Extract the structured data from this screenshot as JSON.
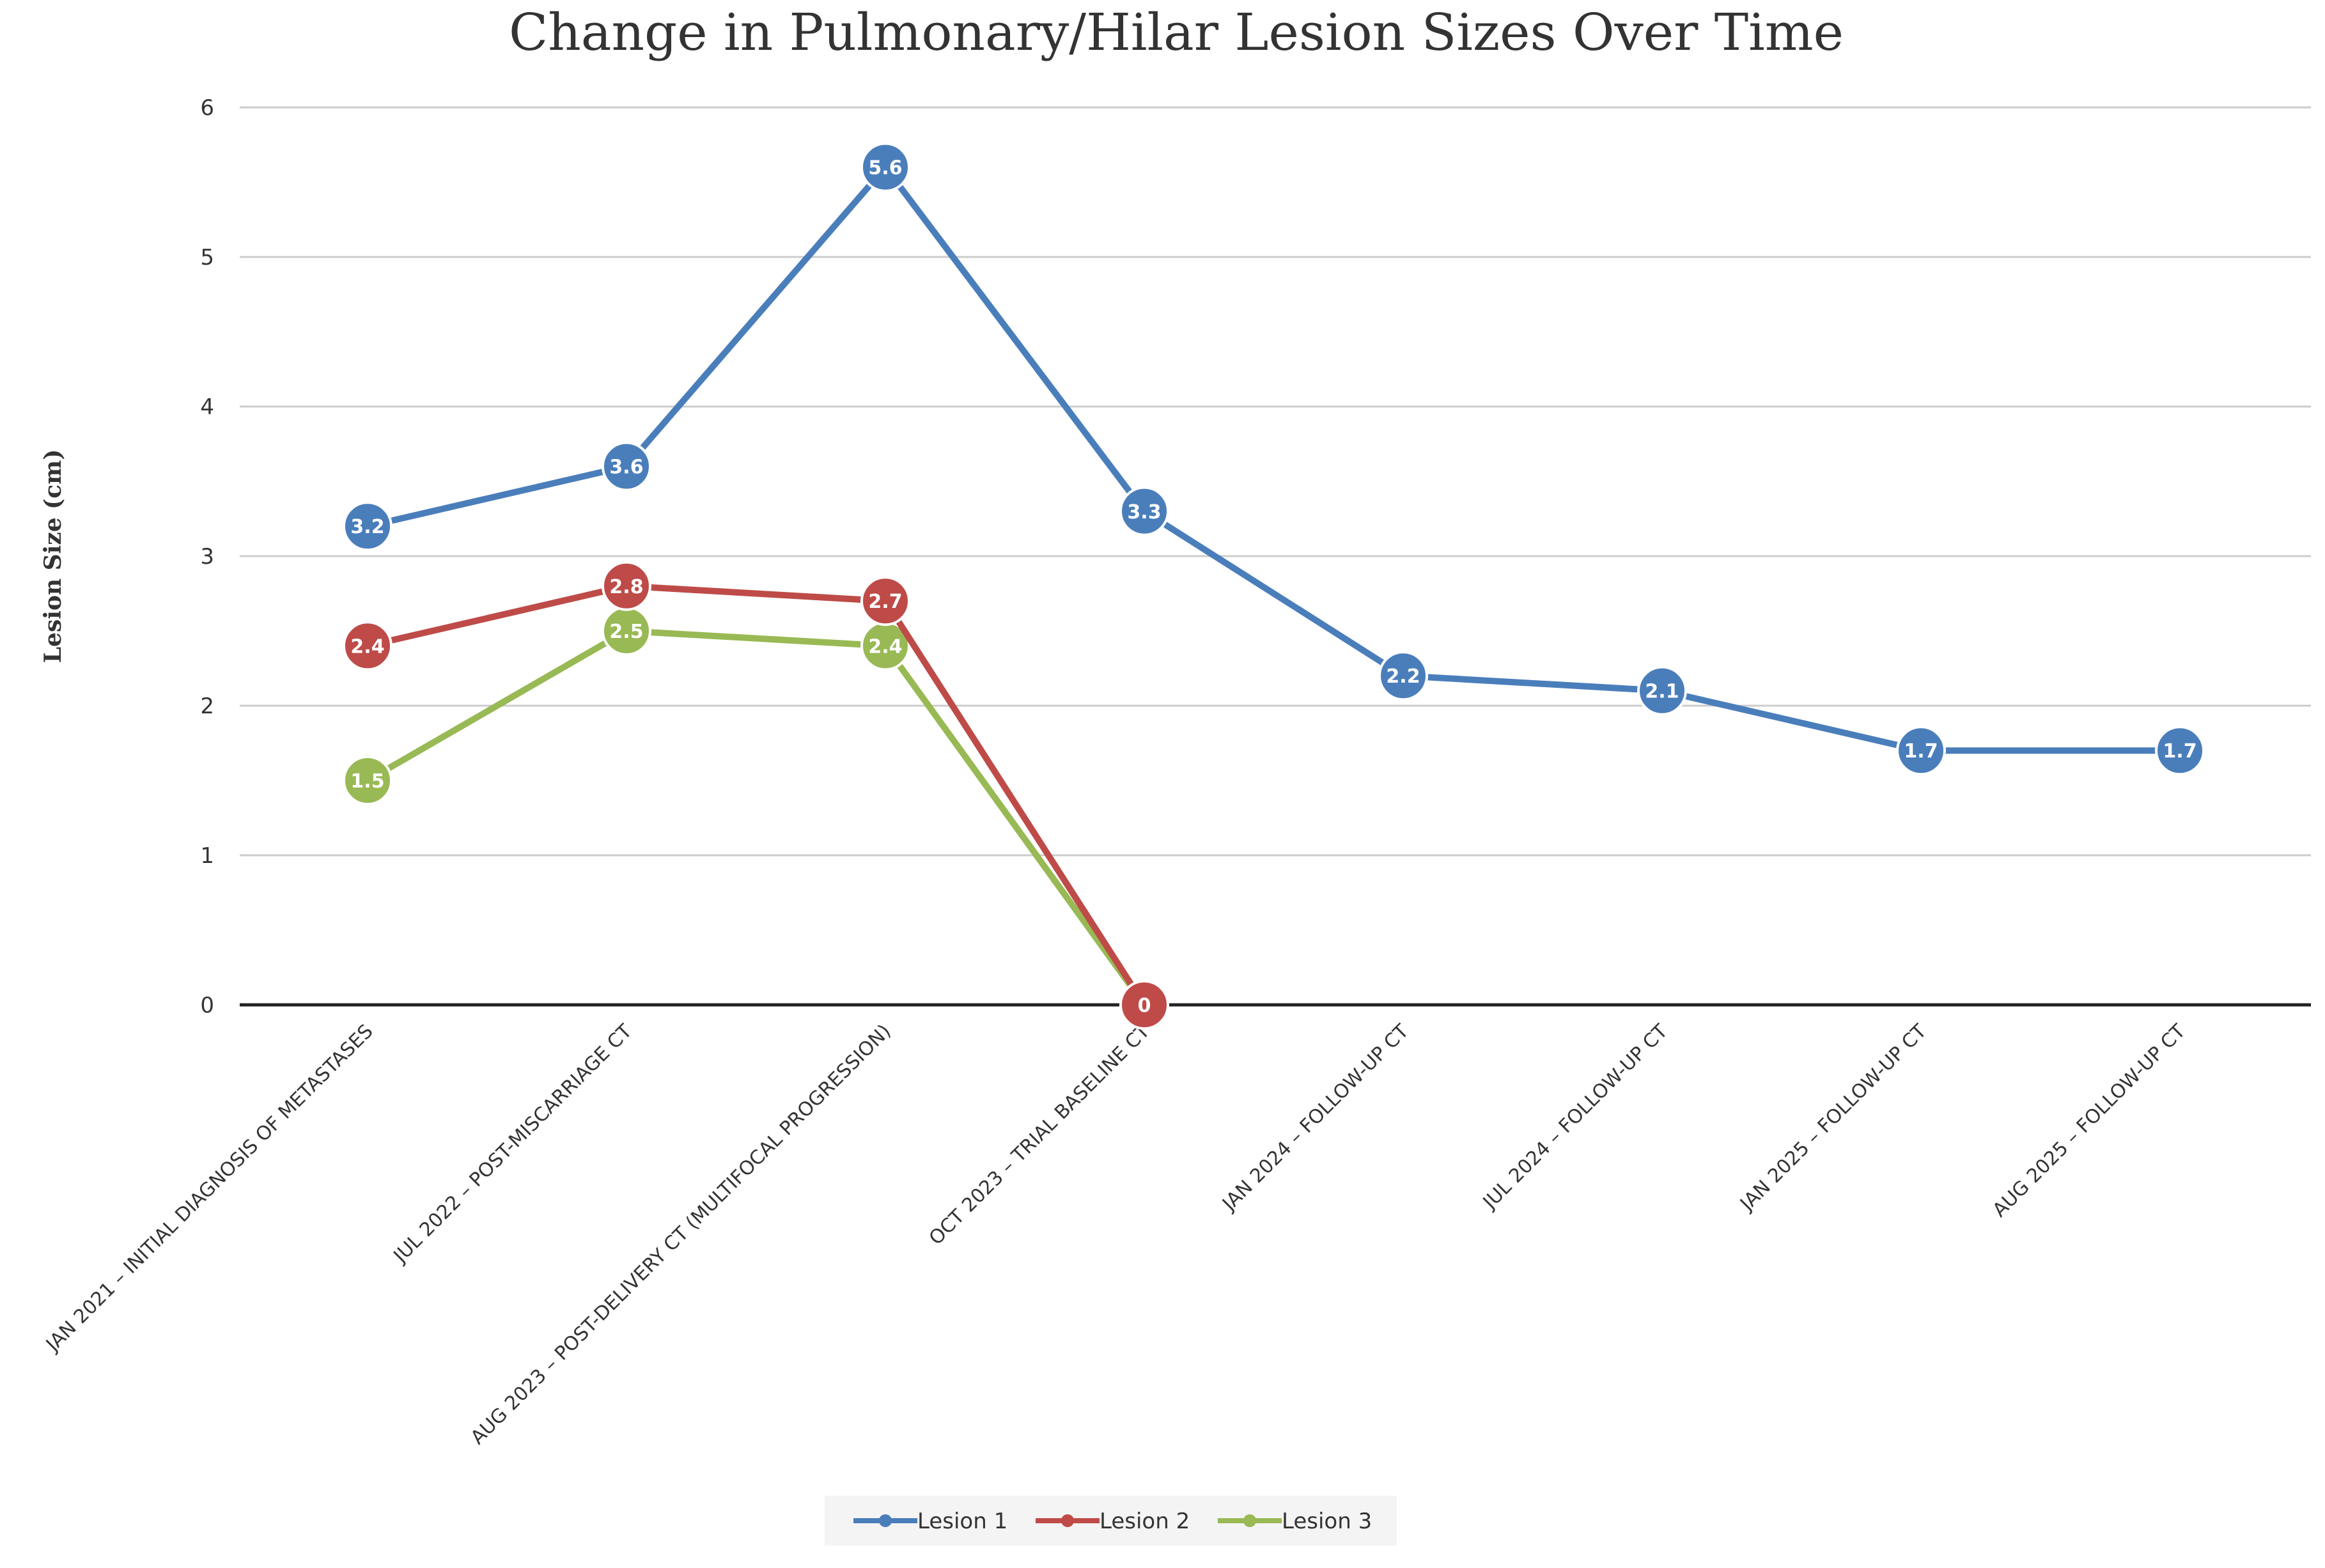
{
  "chart_data": {
    "type": "line",
    "title": "Change in Pulmonary/Hilar Lesion Sizes Over Time",
    "xlabel": "",
    "ylabel": "Lesion Size (cm)",
    "ylim": [
      0,
      6
    ],
    "yticks": [
      0,
      1,
      2,
      3,
      4,
      5,
      6
    ],
    "grid": true,
    "legend": "bottom",
    "categories": [
      "JAN 2021 – INITIAL DIAGNOSIS OF METASTASES",
      "JUL 2022 – POST-MISCARRIAGE CT",
      "AUG 2023 – POST-DELIVERY CT (MULTIFOCAL PROGRESSION)",
      "OCT 2023 – TRIAL BASELINE CT",
      "JAN 2024 – FOLLOW-UP CT",
      "JUL 2024 – FOLLOW-UP CT",
      "JAN 2025 – FOLLOW-UP CT",
      "AUG 2025 – FOLLOW-UP CT"
    ],
    "series": [
      {
        "name": "Lesion 1",
        "color": "#4a7ebb",
        "values": [
          3.2,
          3.6,
          5.6,
          3.3,
          2.2,
          2.1,
          1.7,
          1.7
        ]
      },
      {
        "name": "Lesion 2",
        "color": "#be4b48",
        "values": [
          2.4,
          2.8,
          2.7,
          0,
          null,
          null,
          null,
          null
        ]
      },
      {
        "name": "Lesion 3",
        "color": "#98b954",
        "values": [
          1.5,
          2.5,
          2.4,
          0,
          null,
          null,
          null,
          null
        ]
      }
    ]
  }
}
